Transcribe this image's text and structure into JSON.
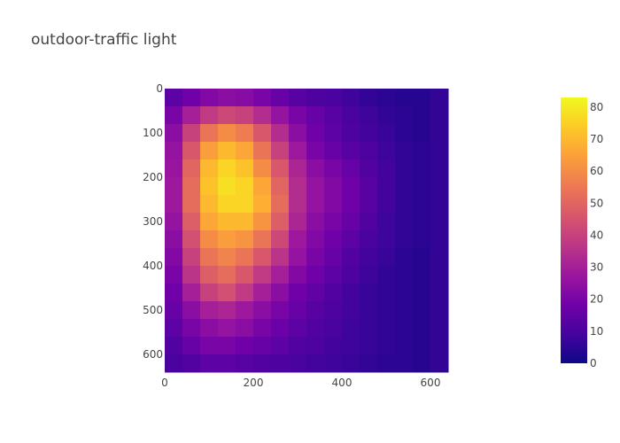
{
  "chart_data": {
    "type": "heatmap",
    "title": "outdoor-traffic light",
    "xlabel": "",
    "ylabel": "",
    "x_range": [
      0,
      640
    ],
    "y_range": [
      640,
      0
    ],
    "y_reversed": true,
    "x_ticks": [
      0,
      200,
      400,
      600
    ],
    "y_ticks": [
      0,
      100,
      200,
      300,
      400,
      500,
      600
    ],
    "colorbar": {
      "range": [
        0,
        83
      ],
      "ticks": [
        0,
        10,
        20,
        30,
        40,
        50,
        60,
        70,
        80
      ],
      "colorscale": [
        "#0d0887",
        "#46039f",
        "#7201a8",
        "#9c179e",
        "#bd3786",
        "#d8576b",
        "#ed7953",
        "#fb9f3a",
        "#fdca26",
        "#f0f921"
      ]
    },
    "grid": {
      "rows": 16,
      "cols": 16,
      "cell_size": 40,
      "values": [
        [
          14,
          18,
          22,
          24,
          23,
          20,
          16,
          13,
          11,
          10,
          8,
          6,
          5,
          4,
          4,
          6
        ],
        [
          20,
          30,
          38,
          42,
          40,
          34,
          26,
          20,
          16,
          13,
          10,
          8,
          6,
          5,
          4,
          6
        ],
        [
          24,
          40,
          54,
          60,
          56,
          46,
          34,
          24,
          18,
          14,
          11,
          9,
          7,
          5,
          4,
          6
        ],
        [
          26,
          46,
          64,
          70,
          66,
          54,
          40,
          28,
          20,
          16,
          13,
          11,
          8,
          6,
          5,
          6
        ],
        [
          27,
          50,
          70,
          76,
          72,
          60,
          46,
          32,
          24,
          20,
          16,
          12,
          9,
          6,
          5,
          6
        ],
        [
          28,
          52,
          72,
          78,
          76,
          66,
          50,
          34,
          26,
          22,
          18,
          13,
          9,
          6,
          5,
          6
        ],
        [
          28,
          52,
          70,
          76,
          76,
          68,
          52,
          34,
          26,
          22,
          18,
          13,
          9,
          6,
          5,
          6
        ],
        [
          26,
          48,
          66,
          70,
          70,
          62,
          48,
          32,
          24,
          20,
          16,
          12,
          8,
          6,
          5,
          6
        ],
        [
          24,
          44,
          60,
          64,
          62,
          54,
          42,
          28,
          22,
          18,
          14,
          10,
          8,
          6,
          5,
          6
        ],
        [
          22,
          40,
          54,
          58,
          54,
          46,
          36,
          26,
          20,
          16,
          12,
          9,
          7,
          5,
          4,
          6
        ],
        [
          20,
          36,
          48,
          52,
          46,
          38,
          30,
          22,
          18,
          14,
          11,
          8,
          6,
          5,
          4,
          6
        ],
        [
          18,
          30,
          40,
          44,
          38,
          30,
          24,
          18,
          15,
          12,
          9,
          7,
          6,
          5,
          4,
          6
        ],
        [
          16,
          24,
          30,
          32,
          28,
          24,
          20,
          16,
          13,
          11,
          9,
          7,
          6,
          5,
          4,
          6
        ],
        [
          14,
          20,
          24,
          26,
          24,
          20,
          17,
          14,
          12,
          10,
          8,
          7,
          6,
          5,
          4,
          6
        ],
        [
          12,
          16,
          20,
          20,
          18,
          16,
          14,
          12,
          11,
          9,
          8,
          7,
          6,
          5,
          4,
          6
        ],
        [
          10,
          12,
          14,
          14,
          13,
          12,
          11,
          10,
          9,
          8,
          7,
          6,
          5,
          5,
          4,
          6
        ]
      ]
    }
  }
}
